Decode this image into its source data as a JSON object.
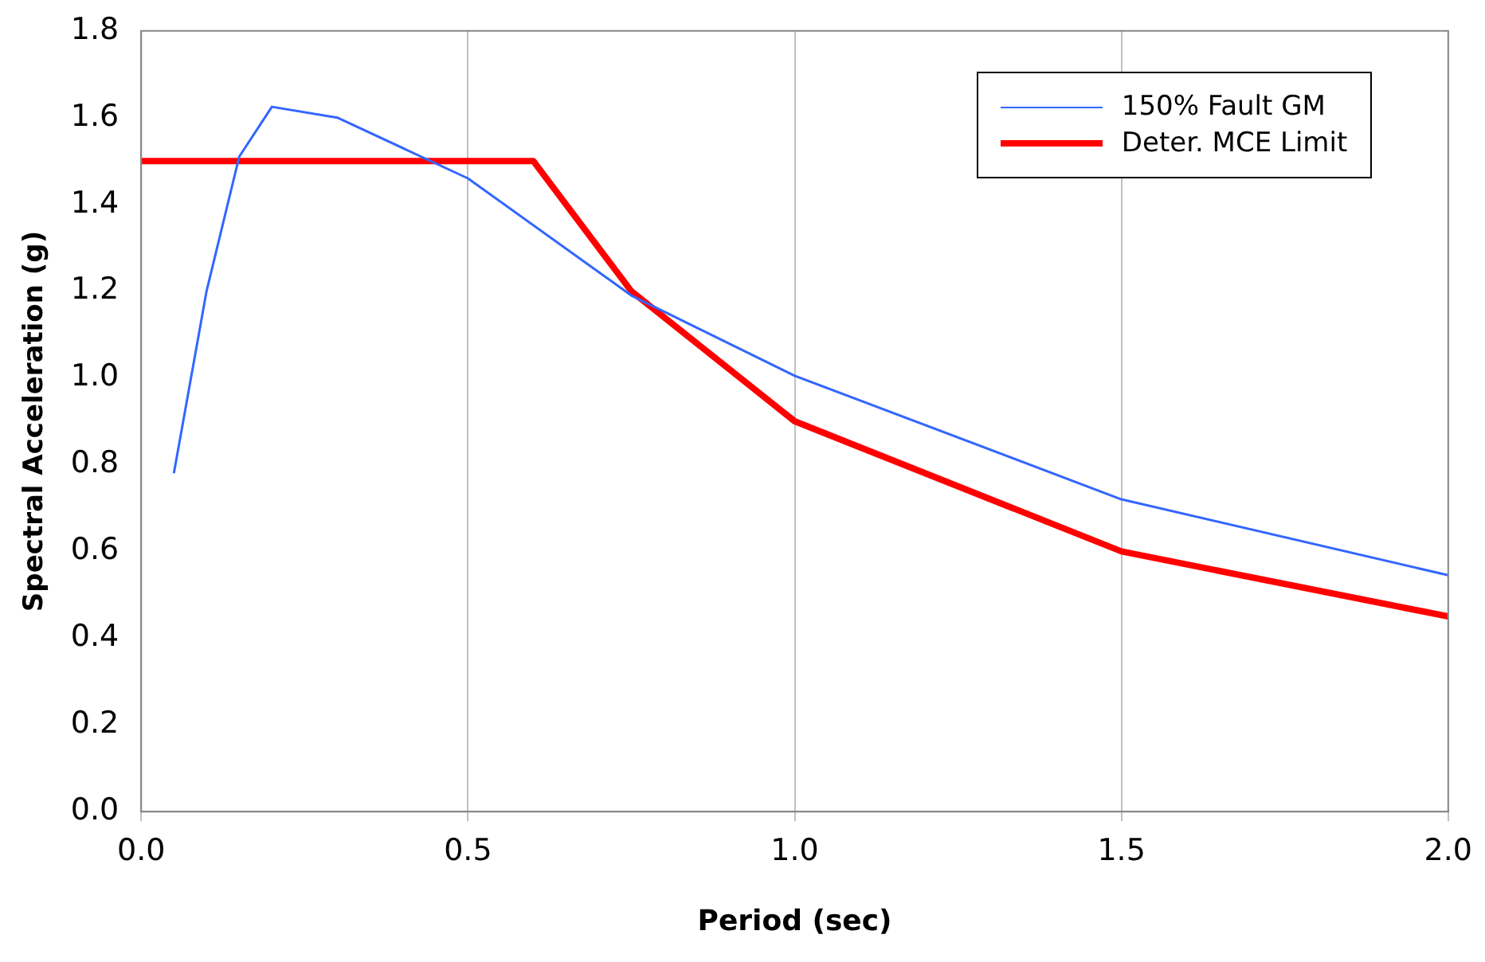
{
  "chart_data": {
    "type": "line",
    "xlabel": "Period (sec)",
    "ylabel": "Spectral Acceleration (g)",
    "series": [
      {
        "name": "150% Fault GM",
        "color": "#3366ff",
        "x": [
          0.05,
          0.1,
          0.15,
          0.2,
          0.3,
          0.5,
          0.75,
          1.0,
          1.5,
          2.0
        ],
        "values": [
          0.78,
          1.2,
          1.51,
          1.625,
          1.6,
          1.46,
          1.19,
          1.005,
          0.72,
          0.545
        ]
      },
      {
        "name": "Deter. MCE Limit",
        "color": "#ff0000",
        "x": [
          0,
          0.6,
          0.75,
          1.0,
          1.5,
          2.0
        ],
        "values": [
          1.5,
          1.5,
          1.2,
          0.9,
          0.6,
          0.45
        ]
      }
    ],
    "xlim": [
      0,
      2
    ],
    "xticks": [
      {
        "value": 0,
        "label": "0.0"
      },
      {
        "value": 0.5,
        "label": "0.5"
      },
      {
        "value": 1,
        "label": "1.0"
      },
      {
        "value": 1.5,
        "label": "1.5"
      },
      {
        "value": 2,
        "label": "2.0"
      }
    ],
    "ylim": [
      0,
      1.8
    ],
    "yticks": [
      {
        "value": 0,
        "label": "0.0"
      },
      {
        "value": 0.2,
        "label": "0.2"
      },
      {
        "value": 0.4,
        "label": "0.4"
      },
      {
        "value": 0.6,
        "label": "0.6"
      },
      {
        "value": 0.8,
        "label": "0.8"
      },
      {
        "value": 1,
        "label": "1.0"
      },
      {
        "value": 1.2,
        "label": "1.2"
      },
      {
        "value": 1.4,
        "label": "1.4"
      },
      {
        "value": 1.6,
        "label": "1.6"
      },
      {
        "value": 1.8,
        "label": "1.8"
      }
    ],
    "grid": "x",
    "legend": "top right",
    "marker": "none",
    "line_style": "solid"
  }
}
